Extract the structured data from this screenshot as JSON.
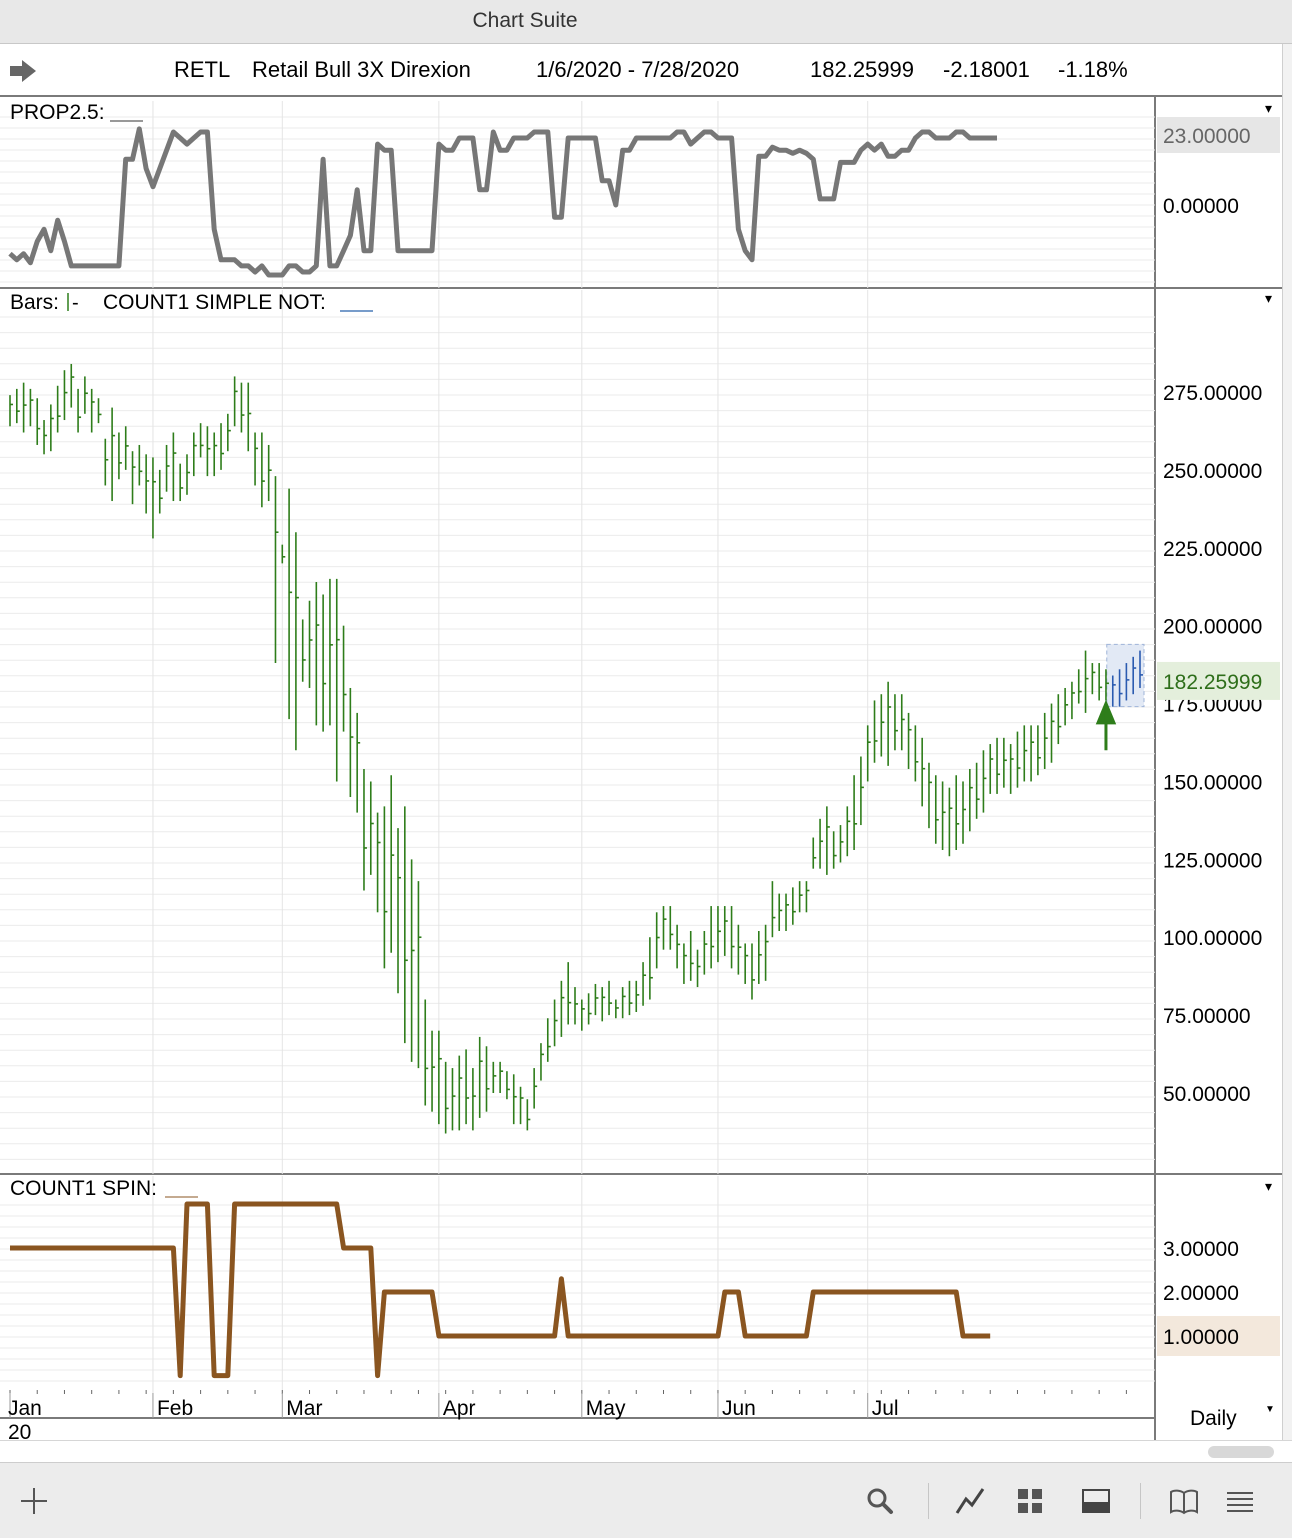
{
  "window": {
    "title": "Chart Suite"
  },
  "header": {
    "symbol": "RETL",
    "name": "Retail Bull 3X Direxion",
    "date_range": "1/6/2020 - 7/28/2020",
    "last": "182.25999",
    "change": "-2.18001",
    "change_pct": "-1.18%"
  },
  "footer": {
    "period": "Daily"
  },
  "toolbar_icons": [
    "plus-icon",
    "search-icon",
    "line-chart-icon",
    "grid-icon",
    "panel-icon",
    "book-icon",
    "list-icon"
  ],
  "colors": {
    "bars": "#2e7d1a",
    "prop_line": "#777777",
    "spin_line": "#8a5520",
    "highlight_bar": "#2b5bb0",
    "signal_arrow": "#2e7d1a"
  },
  "chart_data": [
    {
      "type": "line",
      "panel": "indicator",
      "title": "PROP2.5:",
      "series": [
        {
          "name": "PROP2.5",
          "color": "#777777",
          "values": [
            -16,
            -18,
            -16,
            -19,
            -12,
            -8,
            -15,
            -5,
            -12,
            -20,
            -20,
            -20,
            -20,
            -20,
            -20,
            -20,
            -20,
            15,
            15,
            25,
            12,
            6,
            12,
            18,
            24,
            22,
            20,
            22,
            24,
            24,
            -8,
            -18,
            -18,
            -18,
            -20,
            -20,
            -22,
            -20,
            -23,
            -23,
            -23,
            -20,
            -20,
            -22,
            -22,
            -20,
            15,
            -20,
            -20,
            -15,
            -10,
            5,
            -15,
            -15,
            20,
            18,
            18,
            -15,
            -15,
            -15,
            -15,
            -15,
            -15,
            20,
            18,
            18,
            22,
            22,
            22,
            5,
            5,
            24,
            18,
            18,
            22,
            22,
            22,
            24,
            24,
            24,
            -4,
            -4,
            22,
            22,
            22,
            22,
            22,
            8,
            8,
            0,
            18,
            18,
            22,
            22,
            22,
            22,
            22,
            22,
            24,
            24,
            20,
            22,
            24,
            24,
            22,
            22,
            22,
            -8,
            -15,
            -18,
            16,
            16,
            19,
            18,
            18,
            17,
            18,
            17,
            15,
            2,
            2,
            2,
            14,
            14,
            14,
            18,
            20,
            18,
            20,
            16,
            16,
            18,
            18,
            22,
            24,
            24,
            22,
            22,
            22,
            24,
            24,
            22,
            22,
            22,
            22,
            22
          ]
        }
      ],
      "y_ticks": [
        23,
        0
      ],
      "last_value": "23.00000"
    },
    {
      "type": "ohlc",
      "panel": "price",
      "title": "Bars:",
      "subtitle": "COUNT1 SIMPLE NOT:",
      "x_labels": [
        "Jan",
        "Feb",
        "Mar",
        "Apr",
        "May",
        "Jun",
        "Jul"
      ],
      "year_label": "20",
      "y_ticks": [
        275,
        250,
        225,
        200,
        175,
        150,
        125,
        100,
        75,
        50
      ],
      "last_value": "182.25999",
      "series": [
        {
          "name": "RETL",
          "color": "#2e7d1a",
          "values": [
            [
              264,
              274
            ],
            [
              265,
              276
            ],
            [
              262,
              278
            ],
            [
              264,
              276
            ],
            [
              258,
              273
            ],
            [
              255,
              266
            ],
            [
              256,
              271
            ],
            [
              262,
              277
            ],
            [
              266,
              282
            ],
            [
              270,
              284
            ],
            [
              262,
              276
            ],
            [
              268,
              280
            ],
            [
              262,
              276
            ],
            [
              265,
              273
            ],
            [
              245,
              260
            ],
            [
              240,
              270
            ],
            [
              247,
              262
            ],
            [
              250,
              264
            ],
            [
              239,
              256
            ],
            [
              245,
              258
            ],
            [
              236,
              255
            ],
            [
              228,
              254
            ],
            [
              236,
              250
            ],
            [
              243,
              258
            ],
            [
              240,
              262
            ],
            [
              240,
              252
            ],
            [
              242,
              255
            ],
            [
              248,
              262
            ],
            [
              254,
              265
            ],
            [
              248,
              264
            ],
            [
              248,
              262
            ],
            [
              250,
              265
            ],
            [
              256,
              268
            ],
            [
              264,
              280
            ],
            [
              262,
              278
            ],
            [
              256,
              278
            ],
            [
              245,
              262
            ],
            [
              238,
              262
            ],
            [
              240,
              258
            ],
            [
              188,
              248
            ],
            [
              220,
              226
            ],
            [
              170,
              244
            ],
            [
              160,
              230
            ],
            [
              182,
              202
            ],
            [
              180,
              208
            ],
            [
              168,
              214
            ],
            [
              166,
              210
            ],
            [
              168,
              215
            ],
            [
              150,
              215
            ],
            [
              166,
              200
            ],
            [
              145,
              180
            ],
            [
              140,
              172
            ],
            [
              115,
              154
            ],
            [
              120,
              150
            ],
            [
              108,
              140
            ],
            [
              90,
              142
            ],
            [
              95,
              152
            ],
            [
              82,
              135
            ],
            [
              66,
              142
            ],
            [
              60,
              125
            ],
            [
              58,
              118
            ],
            [
              46,
              80
            ],
            [
              44,
              70
            ],
            [
              40,
              70
            ],
            [
              37,
              60
            ],
            [
              38,
              58
            ],
            [
              38,
              62
            ],
            [
              40,
              64
            ],
            [
              38,
              58
            ],
            [
              42,
              68
            ],
            [
              44,
              65
            ],
            [
              50,
              60
            ],
            [
              50,
              60
            ],
            [
              48,
              57
            ],
            [
              40,
              56
            ],
            [
              40,
              52
            ],
            [
              38,
              48
            ],
            [
              45,
              58
            ],
            [
              54,
              66
            ],
            [
              60,
              74
            ],
            [
              65,
              80
            ],
            [
              68,
              86
            ],
            [
              72,
              92
            ],
            [
              72,
              84
            ],
            [
              70,
              80
            ],
            [
              72,
              82
            ],
            [
              75,
              85
            ],
            [
              73,
              84
            ],
            [
              75,
              86
            ],
            [
              74,
              80
            ],
            [
              74,
              84
            ],
            [
              75,
              86
            ],
            [
              76,
              86
            ],
            [
              78,
              92
            ],
            [
              80,
              100
            ],
            [
              90,
              108
            ],
            [
              96,
              110
            ],
            [
              96,
              110
            ],
            [
              90,
              104
            ],
            [
              85,
              98
            ],
            [
              86,
              102
            ],
            [
              84,
              96
            ],
            [
              88,
              102
            ],
            [
              90,
              110
            ],
            [
              92,
              110
            ],
            [
              94,
              110
            ],
            [
              90,
              110
            ],
            [
              88,
              104
            ],
            [
              85,
              98
            ],
            [
              80,
              98
            ],
            [
              85,
              102
            ],
            [
              86,
              104
            ],
            [
              100,
              118
            ],
            [
              102,
              114
            ],
            [
              102,
              114
            ],
            [
              104,
              116
            ],
            [
              108,
              118
            ],
            [
              108,
              118
            ],
            [
              122,
              132
            ],
            [
              122,
              138
            ],
            [
              120,
              142
            ],
            [
              122,
              134
            ],
            [
              124,
              136
            ],
            [
              126,
              142
            ],
            [
              128,
              152
            ],
            [
              136,
              158
            ],
            [
              150,
              168
            ],
            [
              156,
              176
            ],
            [
              158,
              178
            ],
            [
              155,
              182
            ],
            [
              160,
              178
            ],
            [
              160,
              178
            ],
            [
              154,
              172
            ],
            [
              150,
              168
            ],
            [
              142,
              164
            ],
            [
              135,
              156
            ],
            [
              130,
              152
            ],
            [
              128,
              150
            ],
            [
              126,
              148
            ],
            [
              128,
              152
            ],
            [
              130,
              150
            ],
            [
              134,
              154
            ],
            [
              138,
              156
            ],
            [
              140,
              160
            ],
            [
              146,
              162
            ],
            [
              146,
              164
            ],
            [
              148,
              164
            ],
            [
              146,
              162
            ],
            [
              148,
              166
            ],
            [
              150,
              168
            ],
            [
              150,
              168
            ],
            [
              152,
              168
            ],
            [
              154,
              172
            ],
            [
              156,
              175
            ],
            [
              162,
              178
            ],
            [
              168,
              180
            ],
            [
              170,
              182
            ],
            [
              175,
              186
            ],
            [
              172,
              192
            ],
            [
              178,
              188
            ],
            [
              176,
              188
            ],
            [
              176,
              186
            ],
            [
              174,
              184
            ],
            [
              174,
              186
            ],
            [
              176,
              188
            ],
            [
              178,
              190
            ],
            [
              180,
              192
            ]
          ]
        }
      ]
    },
    {
      "type": "line",
      "panel": "indicator",
      "title": "COUNT1 SPIN:",
      "series": [
        {
          "name": "COUNT1 SPIN",
          "color": "#8a5520",
          "values": [
            3,
            3,
            3,
            3,
            3,
            3,
            3,
            3,
            3,
            3,
            3,
            3,
            3,
            3,
            3,
            3,
            3,
            3,
            3,
            3,
            3,
            3,
            3,
            3,
            3,
            0.1,
            4,
            4,
            4,
            4,
            0.1,
            0.1,
            0.1,
            4,
            4,
            4,
            4,
            4,
            4,
            4,
            4,
            4,
            4,
            4,
            4,
            4,
            4,
            4,
            4,
            3,
            3,
            3,
            3,
            3,
            0.1,
            2,
            2,
            2,
            2,
            2,
            2,
            2,
            2,
            1,
            1,
            1,
            1,
            1,
            1,
            1,
            1,
            1,
            1,
            1,
            1,
            1,
            1,
            1,
            1,
            1,
            1,
            2.3,
            1,
            1,
            1,
            1,
            1,
            1,
            1,
            1,
            1,
            1,
            1,
            1,
            1,
            1,
            1,
            1,
            1,
            1,
            1,
            1,
            1,
            1,
            1,
            2,
            2,
            2,
            1,
            1,
            1,
            1,
            1,
            1,
            1,
            1,
            1,
            1,
            2,
            2,
            2,
            2,
            2,
            2,
            2,
            2,
            2,
            2,
            2,
            2,
            2,
            2,
            2,
            2,
            2,
            2,
            2,
            2,
            2,
            2,
            1,
            1,
            1,
            1,
            1
          ]
        }
      ],
      "y_ticks": [
        3,
        2,
        1
      ],
      "last_value": "1.00000"
    }
  ]
}
